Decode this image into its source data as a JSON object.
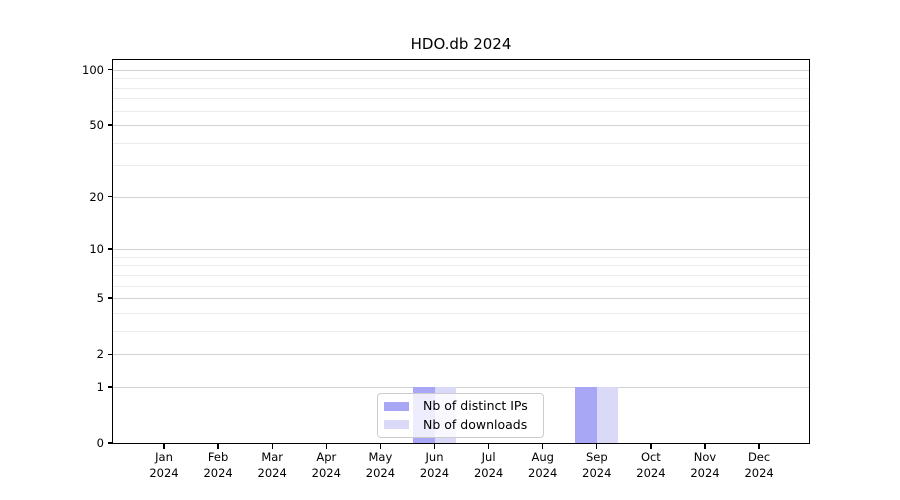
{
  "chart_data": {
    "type": "bar",
    "title": "HDO.db 2024",
    "categories": [
      "Jan 2024",
      "Feb 2024",
      "Mar 2024",
      "Apr 2024",
      "May 2024",
      "Jun 2024",
      "Jul 2024",
      "Aug 2024",
      "Sep 2024",
      "Oct 2024",
      "Nov 2024",
      "Dec 2024"
    ],
    "series": [
      {
        "name": "Nb of distinct IPs",
        "color": "#a7a7f5",
        "values": [
          0,
          0,
          0,
          0,
          0,
          1,
          0,
          0,
          1,
          0,
          0,
          0
        ]
      },
      {
        "name": "Nb of downloads",
        "color": "#dadaf8",
        "values": [
          0,
          0,
          0,
          0,
          0,
          1,
          0,
          0,
          1,
          0,
          0,
          0
        ]
      }
    ],
    "xlabel": "",
    "ylabel": "",
    "y_scale": "log1p",
    "ylim": [
      0,
      113
    ],
    "y_major_ticks": [
      0,
      1,
      2,
      5,
      10,
      20,
      50,
      100
    ],
    "y_minor_ticks": [
      3,
      4,
      6,
      7,
      8,
      9,
      30,
      40,
      60,
      70,
      80,
      90
    ],
    "grid": "horizontal",
    "legend_position": "lower center"
  },
  "colors": {
    "major_grid": "#d2d2d2",
    "minor_grid": "#ebebeb",
    "spine": "#000000",
    "legend_border": "#cccccc"
  }
}
